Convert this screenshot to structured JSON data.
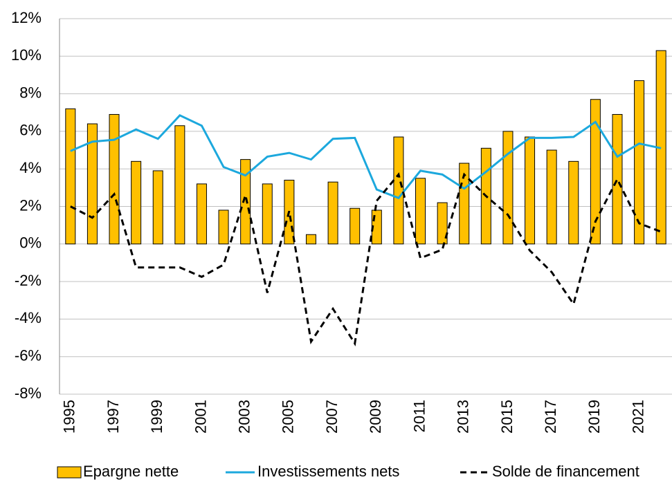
{
  "chart_data": {
    "type": "combo",
    "categories": [
      "1995",
      null,
      "1997",
      null,
      "1999",
      null,
      "2001",
      null,
      "2003",
      null,
      "2005",
      null,
      "2007",
      null,
      "2009",
      null,
      "2011",
      null,
      "2013",
      null,
      "2015",
      null,
      "2017",
      null,
      "2019",
      null,
      "2021",
      null
    ],
    "series": [
      {
        "name": "Epargne nette",
        "type": "bar",
        "color": "#ffc000",
        "values": [
          7.2,
          6.4,
          6.9,
          4.4,
          3.9,
          6.3,
          3.2,
          1.8,
          4.5,
          3.2,
          3.4,
          0.5,
          3.3,
          1.9,
          1.8,
          5.7,
          3.5,
          2.2,
          4.3,
          5.1,
          6.0,
          5.7,
          5.0,
          4.4,
          7.7,
          6.9,
          8.7,
          10.3
        ]
      },
      {
        "name": "Investissements nets",
        "type": "line",
        "color": "#1ca8dd",
        "values": [
          4.95,
          5.45,
          5.55,
          6.1,
          5.6,
          6.85,
          6.3,
          4.1,
          3.65,
          4.65,
          4.85,
          4.5,
          5.6,
          5.65,
          2.9,
          2.45,
          3.9,
          3.7,
          2.95,
          3.85,
          4.8,
          5.65,
          5.65,
          5.7,
          6.5,
          4.65,
          5.35,
          5.1
        ]
      },
      {
        "name": "Solde de financement",
        "type": "line",
        "dashed": true,
        "color": "#000000",
        "values": [
          2.0,
          1.4,
          2.65,
          -1.25,
          -1.25,
          -1.25,
          -1.75,
          -1.1,
          2.6,
          -2.6,
          1.75,
          -5.2,
          -3.45,
          -5.3,
          2.3,
          3.7,
          -0.75,
          -0.3,
          3.7,
          2.55,
          1.55,
          -0.35,
          -1.5,
          -3.2,
          1.2,
          3.45,
          1.1,
          0.65
        ]
      }
    ],
    "ylim": [
      -8,
      12
    ],
    "yticks": [
      {
        "value": -8,
        "label": "-8%"
      },
      {
        "value": -6,
        "label": "-6%"
      },
      {
        "value": -4,
        "label": "-4%"
      },
      {
        "value": -2,
        "label": "-2%"
      },
      {
        "value": 0,
        "label": "0%"
      },
      {
        "value": 2,
        "label": "2%"
      },
      {
        "value": 4,
        "label": "4%"
      },
      {
        "value": 6,
        "label": "6%"
      },
      {
        "value": 8,
        "label": "8%"
      },
      {
        "value": 10,
        "label": "10%"
      },
      {
        "value": 12,
        "label": "12%"
      }
    ],
    "grid": true,
    "legend": "bottom"
  }
}
